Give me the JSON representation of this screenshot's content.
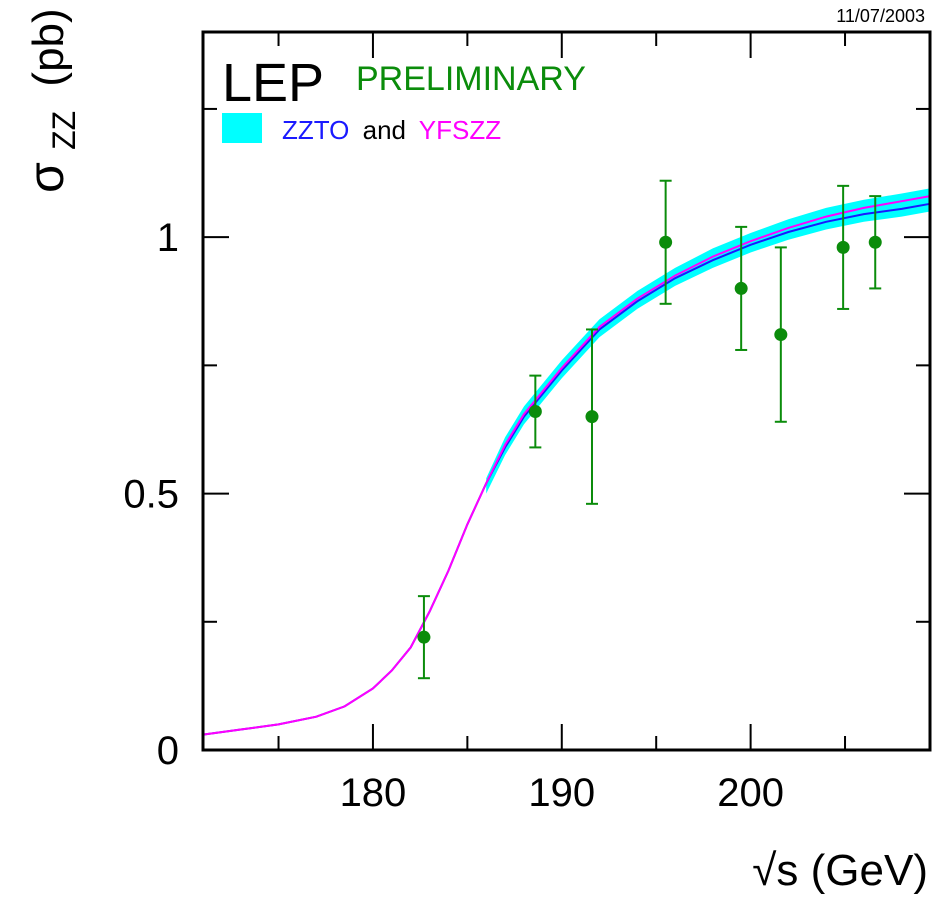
{
  "date": "11/07/2003",
  "experiment": "LEP",
  "status": "PRELIMINARY",
  "colors": {
    "data": "#0b8c0b",
    "band": "#00ffff",
    "zzto": "#1a1aff",
    "yfszz": "#ff00ff",
    "frame": "#000000"
  },
  "legend": {
    "model1": "ZZTO",
    "conj": "and",
    "model2": "YFSZZ"
  },
  "axes": {
    "xlabel": "√s (GeV)",
    "ylabel_symbol": "σ",
    "ylabel_sub": "ZZ",
    "ylabel_unit": "(pb)"
  },
  "chart_data": {
    "type": "scatter",
    "title": "",
    "xlabel": "√s (GeV)",
    "ylabel": "σZZ (pb)",
    "xlim": [
      171,
      209.5
    ],
    "ylim": [
      0,
      1.4
    ],
    "x_ticks": [
      180,
      190,
      200
    ],
    "y_ticks": [
      0,
      0.5,
      1
    ],
    "y_tick_labels": [
      "0",
      "0.5",
      "1"
    ],
    "series": [
      {
        "name": "Data",
        "kind": "points_with_errors",
        "x": [
          182.7,
          188.6,
          191.6,
          195.5,
          199.5,
          201.6,
          204.9,
          206.6
        ],
        "y": [
          0.22,
          0.66,
          0.65,
          0.99,
          0.9,
          0.81,
          0.98,
          0.99
        ],
        "err": [
          0.08,
          0.07,
          0.17,
          0.12,
          0.12,
          0.17,
          0.12,
          0.09
        ]
      },
      {
        "name": "ZZTO",
        "kind": "line",
        "x": [
          171,
          173,
          175,
          177,
          178.5,
          180,
          181,
          182,
          183,
          184,
          185,
          186,
          187,
          188,
          190,
          192,
          194,
          196,
          198,
          200,
          202,
          204,
          206,
          208,
          209.5
        ],
        "y": [
          0.03,
          0.04,
          0.05,
          0.065,
          0.085,
          0.12,
          0.155,
          0.2,
          0.27,
          0.35,
          0.44,
          0.52,
          0.59,
          0.65,
          0.74,
          0.82,
          0.875,
          0.92,
          0.955,
          0.985,
          1.01,
          1.03,
          1.045,
          1.055,
          1.065
        ]
      },
      {
        "name": "YFSZZ",
        "kind": "line",
        "x": [
          171,
          173,
          175,
          177,
          178.5,
          180,
          181,
          182,
          183,
          184,
          185,
          186,
          187,
          188,
          190,
          192,
          194,
          196,
          198,
          200,
          202,
          204,
          206,
          208,
          209.5
        ],
        "y": [
          0.03,
          0.04,
          0.05,
          0.065,
          0.085,
          0.12,
          0.155,
          0.2,
          0.27,
          0.35,
          0.44,
          0.52,
          0.595,
          0.655,
          0.745,
          0.825,
          0.88,
          0.925,
          0.962,
          0.992,
          1.018,
          1.04,
          1.057,
          1.07,
          1.08
        ]
      },
      {
        "name": "ZZTO and YFSZZ",
        "kind": "band",
        "x": [
          186,
          187,
          188,
          190,
          192,
          194,
          196,
          198,
          200,
          202,
          204,
          206,
          208,
          209.5
        ],
        "lower": [
          0.5,
          0.575,
          0.635,
          0.725,
          0.805,
          0.86,
          0.905,
          0.94,
          0.97,
          0.995,
          1.015,
          1.03,
          1.04,
          1.05
        ],
        "upper": [
          0.53,
          0.61,
          0.67,
          0.76,
          0.84,
          0.895,
          0.94,
          0.978,
          1.008,
          1.035,
          1.057,
          1.073,
          1.085,
          1.095
        ]
      }
    ]
  }
}
